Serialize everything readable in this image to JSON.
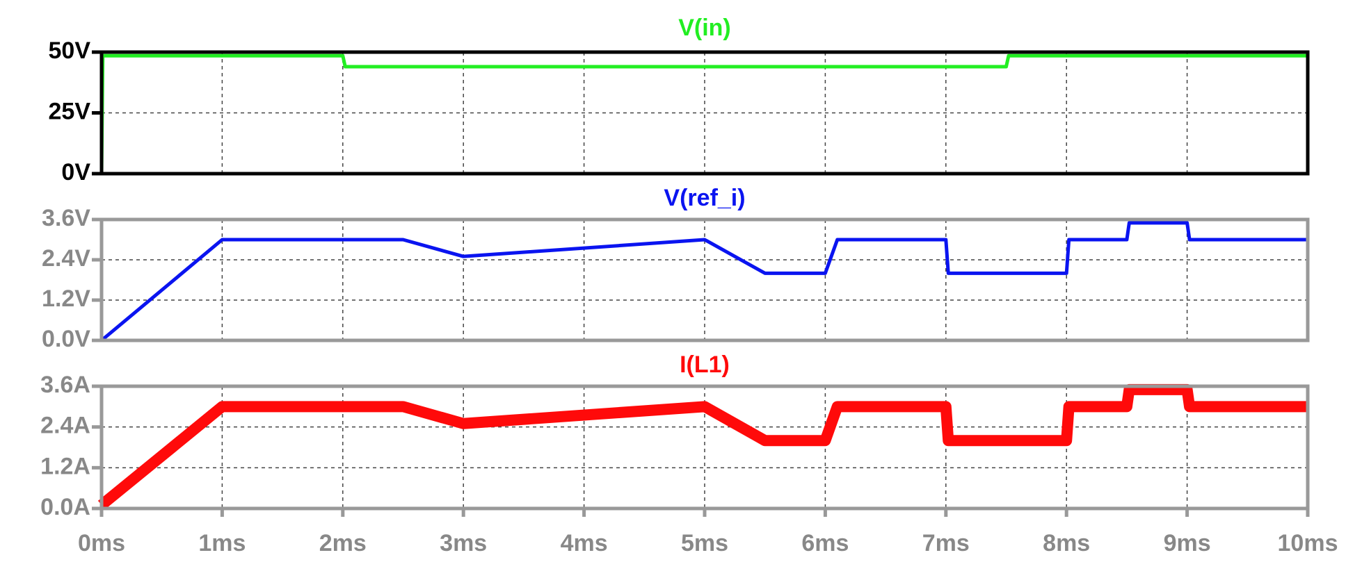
{
  "chart_data": [
    {
      "type": "line",
      "title": "V(in)",
      "x": [
        0,
        0.01,
        2,
        2.02,
        7.5,
        7.52,
        10
      ],
      "series": [
        {
          "color": "#22ee22",
          "values": [
            0,
            48.5,
            48.5,
            44,
            44,
            48.5,
            48.5
          ]
        }
      ],
      "xlim": [
        0,
        10
      ],
      "ylim": [
        0,
        50
      ],
      "yticks": [
        {
          "value": 0,
          "label": "0V"
        },
        {
          "value": 25,
          "label": "25V"
        },
        {
          "value": 50,
          "label": "50V"
        }
      ],
      "axis_color": "#000000",
      "grid": true
    },
    {
      "type": "line",
      "title": "V(ref_i)",
      "x": [
        0,
        1,
        2.5,
        3,
        5,
        5.5,
        6,
        6.1,
        7,
        7.02,
        8,
        8.02,
        8.5,
        8.52,
        9,
        9.02,
        10
      ],
      "series": [
        {
          "color": "#0a14f0",
          "values": [
            0,
            3,
            3,
            2.5,
            3,
            2,
            2,
            3,
            3,
            2,
            2,
            3,
            3,
            3.5,
            3.5,
            3,
            3
          ]
        }
      ],
      "xlim": [
        0,
        10
      ],
      "ylim": [
        0,
        3.6
      ],
      "yticks": [
        {
          "value": 0,
          "label": "0.0V"
        },
        {
          "value": 1.2,
          "label": "1.2V"
        },
        {
          "value": 2.4,
          "label": "2.4V"
        },
        {
          "value": 3.6,
          "label": "3.6V"
        }
      ],
      "axis_color": "#999999",
      "grid": true
    },
    {
      "type": "line",
      "title": "I(L1)",
      "x": [
        0,
        1,
        2.5,
        3,
        5,
        5.5,
        6,
        6.1,
        7,
        7.02,
        8,
        8.02,
        8.5,
        8.52,
        9,
        9.02,
        10
      ],
      "series": [
        {
          "color": "#ff0a0a",
          "values": [
            0.1,
            3,
            3,
            2.5,
            3,
            2,
            2,
            3,
            3,
            2,
            2,
            3,
            3,
            3.5,
            3.5,
            3,
            3
          ]
        }
      ],
      "xlim": [
        0,
        10
      ],
      "ylim": [
        0,
        3.6
      ],
      "xticks": [
        {
          "value": 0,
          "label": "0ms"
        },
        {
          "value": 1,
          "label": "1ms"
        },
        {
          "value": 2,
          "label": "2ms"
        },
        {
          "value": 3,
          "label": "3ms"
        },
        {
          "value": 4,
          "label": "4ms"
        },
        {
          "value": 5,
          "label": "5ms"
        },
        {
          "value": 6,
          "label": "6ms"
        },
        {
          "value": 7,
          "label": "7ms"
        },
        {
          "value": 8,
          "label": "8ms"
        },
        {
          "value": 9,
          "label": "9ms"
        },
        {
          "value": 10,
          "label": "10ms"
        }
      ],
      "yticks": [
        {
          "value": 0,
          "label": "0.0A"
        },
        {
          "value": 1.2,
          "label": "1.2A"
        },
        {
          "value": 2.4,
          "label": "2.4A"
        },
        {
          "value": 3.6,
          "label": "3.6A"
        }
      ],
      "axis_color": "#999999",
      "grid": true
    }
  ]
}
